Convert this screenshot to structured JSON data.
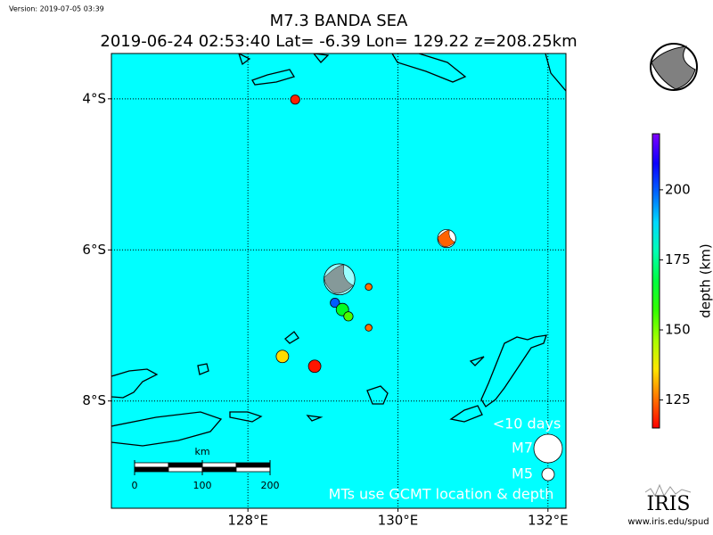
{
  "version": "Version: 2019-07-05 03:39",
  "map": {
    "title": "M7.3 BANDA SEA",
    "subtitle": "2019-06-24 02:53:40 Lat= -6.39 Lon= 129.22 z=208.25km",
    "xlim": [
      126.18,
      132.24
    ],
    "ylim": [
      -9.42,
      -3.4
    ],
    "xticks": [
      {
        "value": 128,
        "label": "128°E"
      },
      {
        "value": 130,
        "label": "130°E"
      },
      {
        "value": 132,
        "label": "132°E"
      }
    ],
    "yticks": [
      {
        "value": -4,
        "label": "4°S"
      },
      {
        "value": -6,
        "label": "6°S"
      },
      {
        "value": -8,
        "label": "8°S"
      }
    ],
    "grid": true,
    "events": [
      {
        "lon": 128.63,
        "lat": -4.01,
        "depth": 118,
        "mag": 4.6
      },
      {
        "lon": 130.65,
        "lat": -5.85,
        "depth": 124,
        "mag": 5.7,
        "mt": true
      },
      {
        "lon": 129.22,
        "lat": -6.39,
        "depth": 208.25,
        "mag": 7.3,
        "mt": true,
        "main": true
      },
      {
        "lon": 129.61,
        "lat": -6.49,
        "depth": 125,
        "mag": 4.3
      },
      {
        "lon": 129.16,
        "lat": -6.7,
        "depth": 200,
        "mag": 4.6
      },
      {
        "lon": 129.26,
        "lat": -6.79,
        "depth": 165,
        "mag": 5.0
      },
      {
        "lon": 129.34,
        "lat": -6.88,
        "depth": 155,
        "mag": 4.6
      },
      {
        "lon": 129.61,
        "lat": -7.03,
        "depth": 125,
        "mag": 4.3
      },
      {
        "lon": 128.46,
        "lat": -7.41,
        "depth": 135,
        "mag": 5.0
      },
      {
        "lon": 128.89,
        "lat": -7.54,
        "depth": 117,
        "mag": 5.0
      }
    ]
  },
  "colorbar": {
    "label": "depth (km)",
    "lim": [
      115,
      220
    ],
    "ticks": [
      125,
      150,
      175,
      200
    ]
  },
  "legend": {
    "title": "<10 days",
    "sizes": [
      {
        "label": "M7",
        "mag": 7
      },
      {
        "label": "M5",
        "mag": 5
      }
    ],
    "note": "MTs use GCMT location & depth"
  },
  "scale_bar": {
    "unit": "km",
    "ticks": [
      0,
      100,
      200
    ]
  },
  "logo": {
    "name": "IRIS",
    "url": "www.iris.edu/spud"
  }
}
